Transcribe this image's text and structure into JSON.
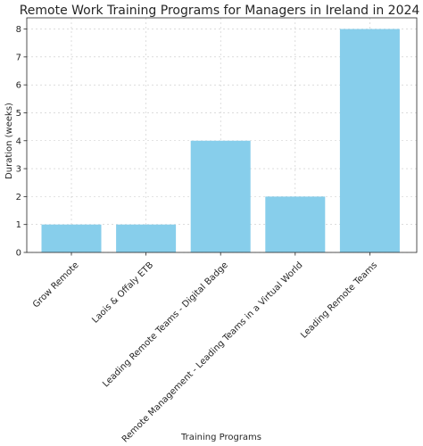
{
  "chart_data": {
    "type": "bar",
    "title": "Remote Work Training Programs for Managers in Ireland in 2024",
    "xlabel": "Training Programs",
    "ylabel": "Duration (weeks)",
    "categories": [
      "Grow Remote",
      "Laois & Offaly ETB",
      "Leading Remote Teams - Digital Badge",
      "Remote Management - Leading Teams in a Virtual World",
      "Leading Remote Teams"
    ],
    "values": [
      1,
      1,
      4,
      2,
      8
    ],
    "ylim": [
      0,
      8.4
    ],
    "yticks": [
      0,
      1,
      2,
      3,
      4,
      5,
      6,
      7,
      8
    ],
    "bar_color": "#87ceeb",
    "grid": true,
    "legend": "none"
  }
}
